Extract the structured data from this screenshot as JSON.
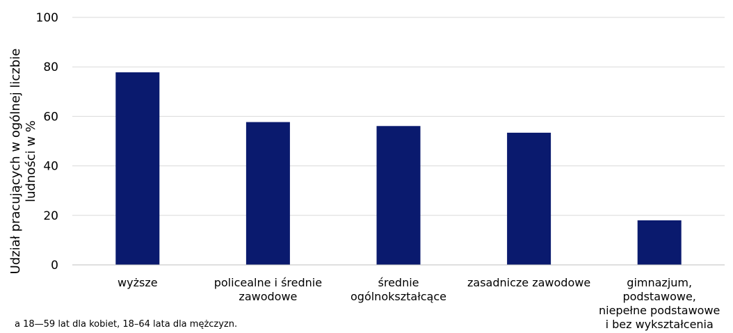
{
  "chart_data": {
    "type": "bar",
    "categories": [
      [
        "wyższe"
      ],
      [
        "policealne i średnie",
        "zawodowe"
      ],
      [
        "średnie",
        "ogólnokształcące"
      ],
      [
        "zasadnicze zawodowe"
      ],
      [
        "gimnazjum,",
        "podstawowe,",
        "niepełne podstawowe",
        "i bez wykształcenia"
      ]
    ],
    "values": [
      77.8,
      57.7,
      56.1,
      53.4,
      18.0
    ],
    "ylabel": [
      "Udział pracujących w ogólnej liczbie",
      "ludności w %"
    ],
    "ylim": [
      0,
      100
    ],
    "yticks": [
      0,
      20,
      40,
      60,
      80,
      100
    ],
    "grid": true,
    "bar_color": "#0a1a6e",
    "grid_color": "#d9d9d9",
    "axis_color": "#bfbfbf"
  },
  "footnote": "a 18—59 lat dla kobiet, 18–64 lata dla mężczyzn."
}
